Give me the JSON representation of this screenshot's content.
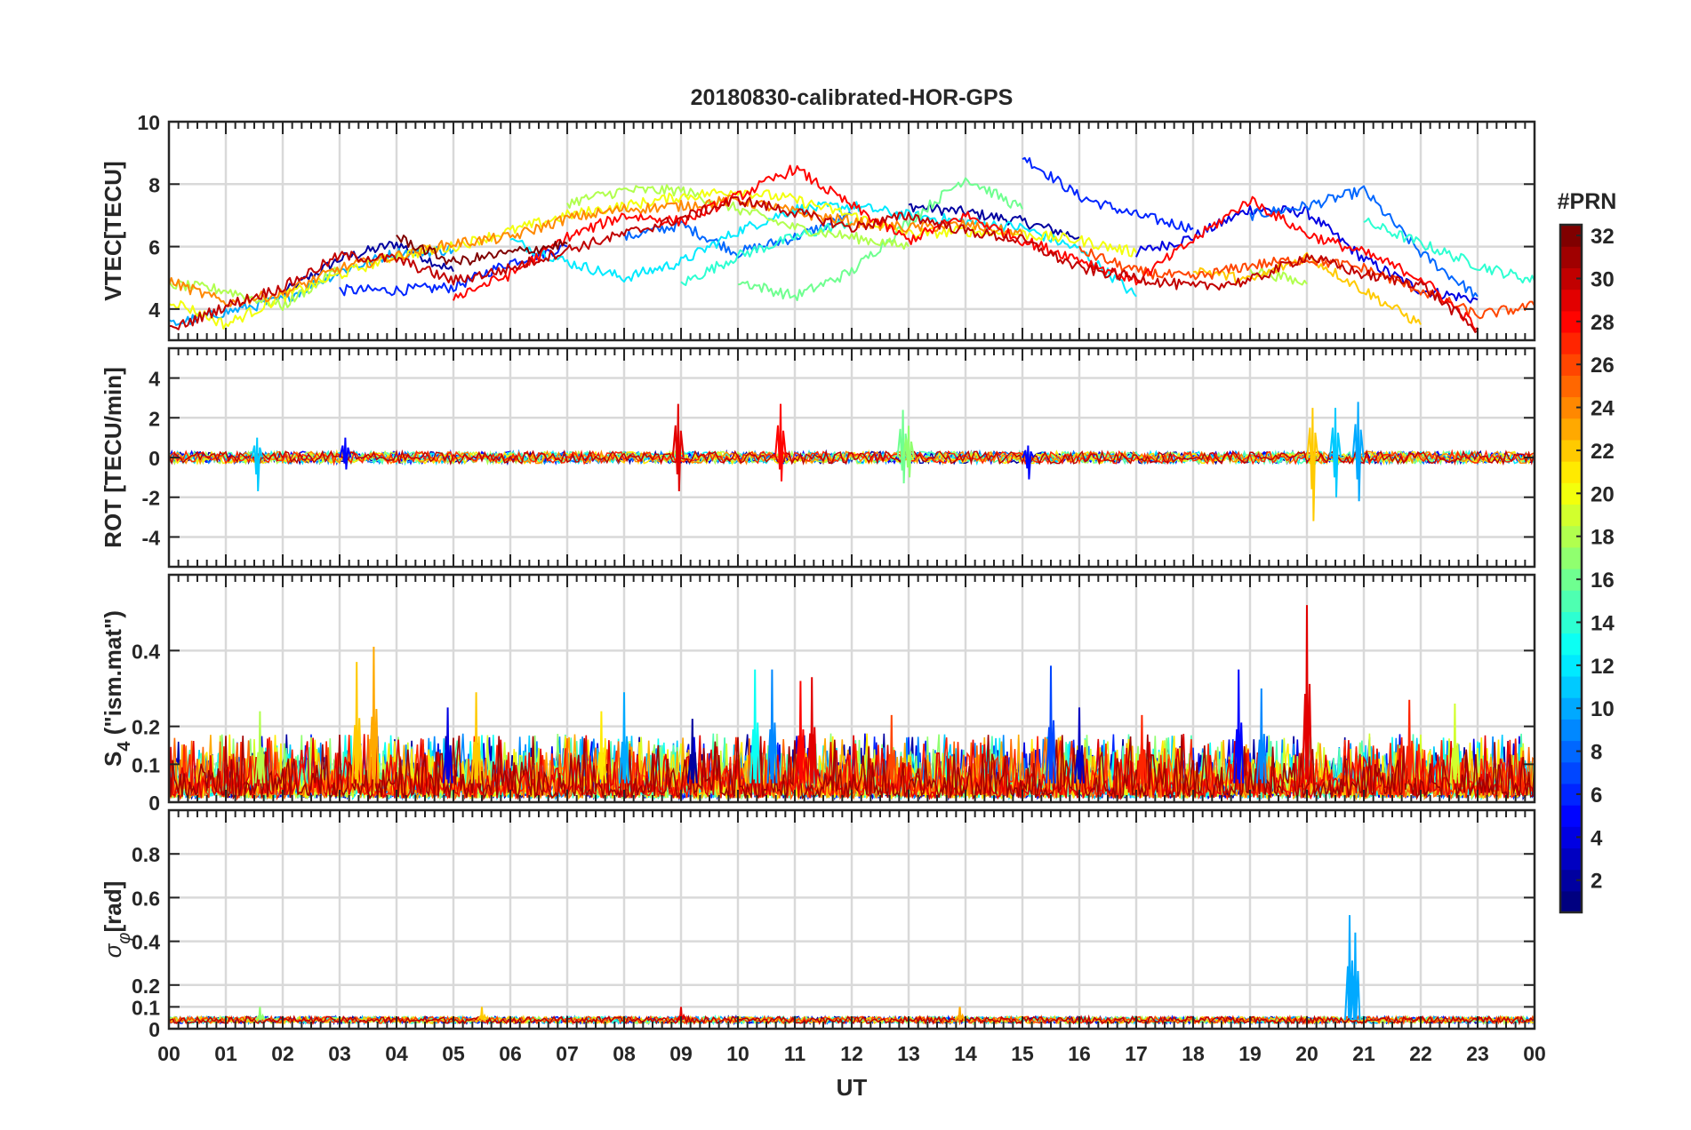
{
  "figure": {
    "title": "20180830-calibrated-HOR-GPS",
    "xlabel": "UT",
    "x_tick_labels": [
      "00",
      "01",
      "02",
      "03",
      "04",
      "05",
      "06",
      "07",
      "08",
      "09",
      "10",
      "11",
      "12",
      "13",
      "14",
      "15",
      "16",
      "17",
      "18",
      "19",
      "20",
      "21",
      "22",
      "23",
      "00"
    ],
    "colorbar": {
      "label": "#PRN",
      "range": [
        1,
        32
      ],
      "tick_labels": [
        "2",
        "4",
        "6",
        "8",
        "10",
        "12",
        "14",
        "16",
        "18",
        "20",
        "22",
        "24",
        "26",
        "28",
        "30",
        "32"
      ],
      "tick_values": [
        2,
        4,
        6,
        8,
        10,
        12,
        14,
        16,
        18,
        20,
        22,
        24,
        26,
        28,
        30,
        32
      ],
      "colormap": "jet"
    }
  },
  "chart_data": [
    {
      "type": "line",
      "panel": "vtec",
      "ylabel": "VTEC[TECU]",
      "xlim": [
        0,
        24
      ],
      "ylim": [
        3,
        10
      ],
      "y_ticks": [
        4,
        6,
        8,
        10
      ],
      "y_tick_labels": [
        "4",
        "6",
        "8",
        "10"
      ],
      "grid": true,
      "x": [
        0,
        1,
        2,
        3,
        4,
        5,
        6,
        7,
        8,
        9,
        10,
        11,
        12,
        13,
        14,
        15,
        16,
        17,
        18,
        19,
        20,
        21,
        22,
        23,
        24
      ],
      "series": [
        {
          "name": "PRN 2",
          "prn": 2,
          "values": [
            null,
            null,
            4.5,
            5.6,
            6.1,
            5.2,
            null,
            null,
            null,
            null,
            null,
            null,
            null,
            7.3,
            7.1,
            6.8,
            6.3,
            null,
            null,
            null,
            null,
            null,
            null,
            null,
            null
          ]
        },
        {
          "name": "PRN 4",
          "prn": 4,
          "values": [
            null,
            null,
            null,
            null,
            null,
            null,
            null,
            null,
            null,
            null,
            null,
            null,
            null,
            null,
            null,
            null,
            null,
            5.8,
            6.3,
            7.2,
            7.1,
            5.6,
            4.6,
            4.3,
            null
          ]
        },
        {
          "name": "PRN 6",
          "prn": 6,
          "values": [
            null,
            null,
            null,
            4.6,
            4.6,
            4.7,
            5.5,
            6.0,
            null,
            null,
            null,
            null,
            null,
            null,
            null,
            8.9,
            7.6,
            7.0,
            6.6,
            null,
            null,
            null,
            null,
            null,
            null
          ]
        },
        {
          "name": "PRN 8",
          "prn": 8,
          "values": [
            null,
            null,
            null,
            null,
            null,
            null,
            null,
            null,
            6.3,
            6.7,
            5.8,
            6.3,
            7.0,
            null,
            null,
            null,
            null,
            null,
            null,
            7.0,
            7.3,
            7.8,
            5.8,
            4.4,
            null
          ]
        },
        {
          "name": "PRN 10",
          "prn": 10,
          "values": [
            3.5,
            3.9,
            4.3,
            5.2,
            5.8,
            5.9,
            null,
            null,
            null,
            null,
            null,
            null,
            null,
            null,
            null,
            null,
            null,
            null,
            null,
            null,
            null,
            null,
            null,
            null,
            null
          ]
        },
        {
          "name": "PRN 12",
          "prn": 12,
          "values": [
            null,
            null,
            null,
            null,
            null,
            null,
            6.2,
            5.5,
            5.0,
            5.5,
            6.5,
            7.2,
            7.3,
            7.0,
            6.8,
            6.6,
            5.9,
            4.4,
            null,
            null,
            null,
            null,
            null,
            null,
            null
          ]
        },
        {
          "name": "PRN 14",
          "prn": 14,
          "values": [
            null,
            null,
            null,
            null,
            null,
            null,
            null,
            null,
            null,
            4.8,
            5.7,
            6.3,
            6.8,
            null,
            null,
            null,
            null,
            null,
            null,
            null,
            null,
            6.8,
            6.1,
            5.4,
            4.9
          ]
        },
        {
          "name": "PRN 16",
          "prn": 16,
          "values": [
            null,
            null,
            null,
            null,
            null,
            null,
            null,
            null,
            null,
            null,
            4.9,
            4.4,
            5.2,
            6.8,
            8.2,
            7.2,
            null,
            null,
            null,
            null,
            null,
            null,
            null,
            null,
            null
          ]
        },
        {
          "name": "PRN 18",
          "prn": 18,
          "values": [
            4.8,
            4.6,
            4.1,
            5.3,
            null,
            null,
            null,
            7.4,
            7.8,
            7.8,
            7.2,
            6.6,
            6.3,
            6.0,
            null,
            null,
            null,
            null,
            null,
            5.3,
            4.8,
            null,
            null,
            null,
            null
          ]
        },
        {
          "name": "PRN 20",
          "prn": 20,
          "values": [
            4.3,
            3.5,
            4.4,
            5.1,
            5.7,
            6.0,
            6.5,
            7.0,
            7.3,
            7.6,
            7.8,
            7.5,
            7.0,
            6.4,
            6.5,
            6.4,
            6.2,
            5.8,
            null,
            null,
            null,
            null,
            null,
            null,
            null
          ]
        },
        {
          "name": "PRN 22",
          "prn": 22,
          "values": [
            null,
            null,
            null,
            null,
            null,
            null,
            null,
            null,
            null,
            null,
            null,
            null,
            null,
            null,
            null,
            null,
            null,
            null,
            5.3,
            4.9,
            5.7,
            4.6,
            3.5,
            null,
            null
          ]
        },
        {
          "name": "PRN 24",
          "prn": 24,
          "values": [
            4.9,
            4.2,
            4.5,
            5.3,
            5.7,
            6.1,
            6.3,
            6.9,
            7.2,
            7.3,
            7.5,
            7.1,
            6.8,
            6.6,
            6.7,
            6.4,
            null,
            null,
            null,
            null,
            null,
            null,
            null,
            null,
            null
          ]
        },
        {
          "name": "PRN 26",
          "prn": 26,
          "values": [
            null,
            null,
            null,
            null,
            null,
            null,
            null,
            null,
            null,
            null,
            null,
            null,
            null,
            null,
            null,
            null,
            5.9,
            5.2,
            5.0,
            5.4,
            5.6,
            5.3,
            4.6,
            3.8,
            4.1
          ]
        },
        {
          "name": "PRN 28",
          "prn": 28,
          "values": [
            null,
            null,
            null,
            null,
            null,
            4.4,
            5.1,
            6.3,
            7.0,
            6.8,
            7.6,
            8.5,
            7.3,
            6.2,
            7.0,
            6.2,
            5.6,
            4.9,
            6.2,
            7.5,
            6.4,
            5.8,
            5.0,
            3.4,
            null
          ]
        },
        {
          "name": "PRN 30",
          "prn": 30,
          "values": [
            3.3,
            4.1,
            4.7,
            5.7,
            5.6,
            4.9,
            5.3,
            5.9,
            6.4,
            6.9,
            7.5,
            7.1,
            6.6,
            7.0,
            6.5,
            6.2,
            5.3,
            5.0,
            4.7,
            4.9,
            5.7,
            5.1,
            4.8,
            3.3,
            null
          ]
        },
        {
          "name": "PRN 32",
          "prn": 32,
          "values": [
            null,
            null,
            null,
            null,
            6.3,
            5.5,
            5.8,
            6.1,
            null,
            null,
            null,
            null,
            null,
            null,
            null,
            null,
            null,
            null,
            null,
            null,
            null,
            null,
            null,
            null,
            null
          ]
        }
      ]
    },
    {
      "type": "line",
      "panel": "rot",
      "ylabel": "ROT [TECU/min]",
      "xlim": [
        0,
        24
      ],
      "ylim": [
        -5.5,
        5.5
      ],
      "y_ticks": [
        -4,
        -2,
        0,
        2,
        4
      ],
      "y_tick_labels": [
        "-4",
        "-2",
        "0",
        "2",
        "4"
      ],
      "grid": true,
      "baseline_noise": 0.3,
      "spikes": [
        {
          "x": 1.55,
          "min": -1.7,
          "max": 1.0,
          "prn": 11
        },
        {
          "x": 3.1,
          "min": -0.6,
          "max": 1.0,
          "prn": 5
        },
        {
          "x": 8.95,
          "min": -1.7,
          "max": 2.7,
          "prn": 29
        },
        {
          "x": 10.75,
          "min": -1.2,
          "max": 2.7,
          "prn": 28
        },
        {
          "x": 12.9,
          "min": -1.3,
          "max": 2.4,
          "prn": 16
        },
        {
          "x": 13.0,
          "min": -1.0,
          "max": 1.6,
          "prn": 17
        },
        {
          "x": 15.1,
          "min": -1.1,
          "max": 0.6,
          "prn": 5
        },
        {
          "x": 20.1,
          "min": -3.2,
          "max": 2.5,
          "prn": 22
        },
        {
          "x": 20.5,
          "min": -2.0,
          "max": 2.5,
          "prn": 11
        },
        {
          "x": 20.9,
          "min": -2.2,
          "max": 2.8,
          "prn": 10
        }
      ]
    },
    {
      "type": "line",
      "panel": "s4",
      "ylabel": "S4 (\"ism.mat\")",
      "ylabel_main": "S",
      "ylabel_sub": "4",
      "ylabel_rest": " (\"ism.mat\")",
      "xlim": [
        0,
        24
      ],
      "ylim": [
        0,
        0.6
      ],
      "y_ticks": [
        0,
        0.1,
        0.2,
        0.4
      ],
      "y_tick_labels": [
        "0",
        "0.1",
        "0.2",
        "0.4"
      ],
      "grid": true,
      "baseline": 0.07,
      "peaks": [
        {
          "x": 1.6,
          "value": 0.24,
          "prn": 18
        },
        {
          "x": 3.3,
          "value": 0.37,
          "prn": 22
        },
        {
          "x": 3.6,
          "value": 0.41,
          "prn": 23
        },
        {
          "x": 4.9,
          "value": 0.25,
          "prn": 4
        },
        {
          "x": 5.4,
          "value": 0.29,
          "prn": 22
        },
        {
          "x": 7.6,
          "value": 0.24,
          "prn": 21
        },
        {
          "x": 8.0,
          "value": 0.29,
          "prn": 10
        },
        {
          "x": 9.2,
          "value": 0.22,
          "prn": 2
        },
        {
          "x": 10.3,
          "value": 0.35,
          "prn": 13
        },
        {
          "x": 10.6,
          "value": 0.35,
          "prn": 9
        },
        {
          "x": 11.1,
          "value": 0.32,
          "prn": 28
        },
        {
          "x": 11.3,
          "value": 0.33,
          "prn": 29
        },
        {
          "x": 12.7,
          "value": 0.23,
          "prn": 26
        },
        {
          "x": 15.5,
          "value": 0.36,
          "prn": 7
        },
        {
          "x": 16.0,
          "value": 0.25,
          "prn": 3
        },
        {
          "x": 17.1,
          "value": 0.23,
          "prn": 27
        },
        {
          "x": 18.8,
          "value": 0.35,
          "prn": 5
        },
        {
          "x": 19.2,
          "value": 0.3,
          "prn": 9
        },
        {
          "x": 20.0,
          "value": 0.52,
          "prn": 29
        },
        {
          "x": 21.8,
          "value": 0.27,
          "prn": 27
        },
        {
          "x": 22.6,
          "value": 0.26,
          "prn": 19
        }
      ]
    },
    {
      "type": "line",
      "panel": "sigma_phi",
      "ylabel": "σφ[rad]",
      "ylabel_main": "σ",
      "ylabel_sub": "φ",
      "ylabel_rest": "[rad]",
      "xlim": [
        0,
        24
      ],
      "ylim": [
        0,
        1.0
      ],
      "y_ticks": [
        0,
        0.1,
        0.2,
        0.4,
        0.6,
        0.8
      ],
      "y_tick_labels": [
        "0",
        "0.1",
        "0.2",
        "0.4",
        "0.6",
        "0.8"
      ],
      "grid": true,
      "baseline": 0.04,
      "peaks": [
        {
          "x": 1.6,
          "value": 0.1,
          "prn": 17
        },
        {
          "x": 5.5,
          "value": 0.1,
          "prn": 22
        },
        {
          "x": 9.0,
          "value": 0.1,
          "prn": 29
        },
        {
          "x": 13.9,
          "value": 0.1,
          "prn": 23
        },
        {
          "x": 20.75,
          "value": 0.52,
          "prn": 10
        },
        {
          "x": 20.85,
          "value": 0.44,
          "prn": 10
        }
      ]
    }
  ]
}
